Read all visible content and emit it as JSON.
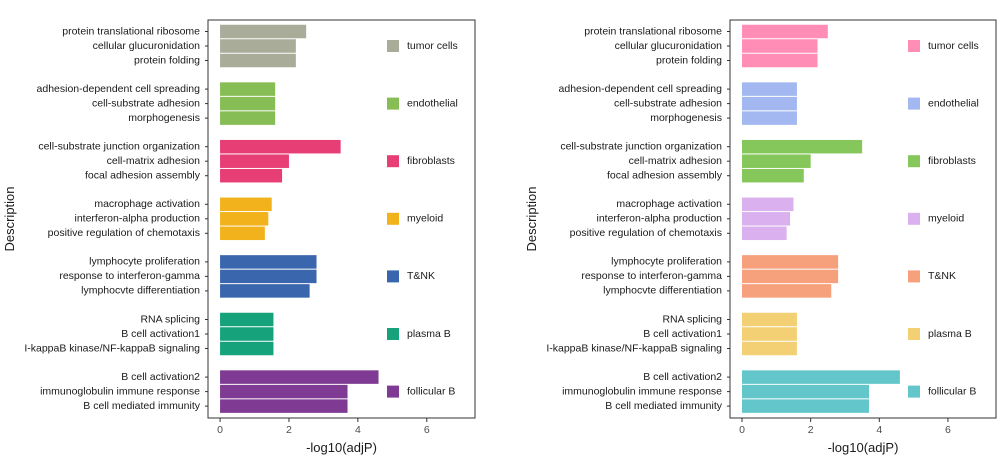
{
  "chart_data": [
    {
      "type": "bar",
      "orientation": "horizontal",
      "xlabel": "-log10(adjP)",
      "ylabel": "Description",
      "xlim": [
        -0.35,
        7.4
      ],
      "xticks": [
        0,
        2,
        4,
        6
      ],
      "grid": false,
      "legend_placement": "right-inside",
      "groups": [
        {
          "name": "tumor cells",
          "color": "#a8ac99",
          "terms": [
            "protein translational ribosome",
            "cellular glucuronidation",
            "protein folding"
          ],
          "values": [
            2.5,
            2.2,
            2.2
          ]
        },
        {
          "name": "endothelial",
          "color": "#86bd54",
          "terms": [
            "adhesion-dependent cell spreading",
            "cell-substrate adhesion",
            "morphogenesis"
          ],
          "values": [
            1.6,
            1.6,
            1.6
          ]
        },
        {
          "name": "fibroblasts",
          "color": "#e63e75",
          "terms": [
            "cell-substrate junction organization",
            "cell-matrix adhesion",
            "focal adhesion assembly"
          ],
          "values": [
            3.5,
            2.0,
            1.8
          ]
        },
        {
          "name": "myeloid",
          "color": "#f2b21b",
          "terms": [
            "macrophage activation",
            "interferon-alpha production",
            "positive regulation of chemotaxis"
          ],
          "values": [
            1.5,
            1.4,
            1.3
          ]
        },
        {
          "name": "T&NK",
          "color": "#3a66ad",
          "terms": [
            "lymphocyte proliferation",
            "response to interferon-gamma",
            "lymphocvte differentiation"
          ],
          "values": [
            2.8,
            2.8,
            2.6
          ]
        },
        {
          "name": "plasma B",
          "color": "#16a27a",
          "terms": [
            "RNA splicing",
            "B cell activation1",
            "I-kappaB kinase/NF-kappaB signaling"
          ],
          "values": [
            1.55,
            1.55,
            1.55
          ]
        },
        {
          "name": "follicular B",
          "color": "#7f3a93",
          "terms": [
            "B cell activation2",
            "immunoglobulin immune response",
            "B cell mediated immunity"
          ],
          "values": [
            4.6,
            3.7,
            3.7
          ]
        }
      ]
    },
    {
      "type": "bar",
      "orientation": "horizontal",
      "xlabel": "-log10(adjP)",
      "ylabel": "Description",
      "xlim": [
        -0.35,
        7.4
      ],
      "xticks": [
        0,
        2,
        4,
        6
      ],
      "grid": false,
      "legend_placement": "right-inside",
      "groups": [
        {
          "name": "tumor cells",
          "color": "#ff8db5",
          "terms": [
            "protein translational ribosome",
            "cellular glucuronidation",
            "protein folding"
          ],
          "values": [
            2.5,
            2.2,
            2.2
          ]
        },
        {
          "name": "endothelial",
          "color": "#a3b8f0",
          "terms": [
            "adhesion-dependent cell spreading",
            "cell-substrate adhesion",
            "morphogenesis"
          ],
          "values": [
            1.6,
            1.6,
            1.6
          ]
        },
        {
          "name": "fibroblasts",
          "color": "#86c75c",
          "terms": [
            "cell-substrate junction organization",
            "cell-matrix adhesion",
            "focal adhesion assembly"
          ],
          "values": [
            3.5,
            2.0,
            1.8
          ]
        },
        {
          "name": "myeloid",
          "color": "#dbb0ee",
          "terms": [
            "macrophage activation",
            "interferon-alpha production",
            "positive regulation of chemotaxis"
          ],
          "values": [
            1.5,
            1.4,
            1.3
          ]
        },
        {
          "name": "T&NK",
          "color": "#f6a07c",
          "terms": [
            "lymphocyte proliferation",
            "response to interferon-gamma",
            "lymphocvte differentiation"
          ],
          "values": [
            2.8,
            2.8,
            2.6
          ]
        },
        {
          "name": "plasma B",
          "color": "#f3d074",
          "terms": [
            "RNA splicing",
            "B cell activation1",
            "I-kappaB kinase/NF-kappaB signaling"
          ],
          "values": [
            1.6,
            1.6,
            1.6
          ]
        },
        {
          "name": "follicular B",
          "color": "#62c6cb",
          "terms": [
            "B cell activation2",
            "immunoglobulin immune response",
            "B cell mediated immunity"
          ],
          "values": [
            4.6,
            3.7,
            3.7
          ]
        }
      ]
    }
  ]
}
